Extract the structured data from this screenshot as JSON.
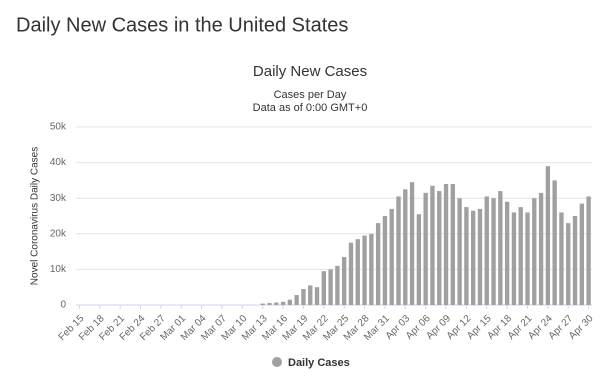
{
  "page_title": "Daily New Cases in the United States",
  "chart_data": {
    "type": "bar",
    "title": "Daily New Cases",
    "subtitle": [
      "Cases per Day",
      "Data as of 0:00 GMT+0"
    ],
    "y_label": "Novel Coronavirus Daily Cases",
    "categories": [
      "Feb 15",
      null,
      null,
      "Feb 18",
      null,
      null,
      "Feb 21",
      null,
      null,
      "Feb 24",
      null,
      null,
      "Feb 27",
      null,
      null,
      "Mar 01",
      null,
      null,
      "Mar 04",
      null,
      null,
      "Mar 07",
      null,
      null,
      "Mar 10",
      null,
      null,
      "Mar 13",
      null,
      null,
      "Mar 16",
      null,
      null,
      "Mar 19",
      null,
      null,
      "Mar 22",
      null,
      null,
      "Mar 25",
      null,
      null,
      "Mar 28",
      null,
      null,
      "Mar 31",
      null,
      null,
      "Apr 03",
      null,
      null,
      "Apr 06",
      null,
      null,
      "Apr 09",
      null,
      null,
      "Apr 12",
      null,
      null,
      "Apr 15",
      null,
      null,
      "Apr 18",
      null,
      null,
      "Apr 21",
      null,
      null,
      "Apr 24",
      null,
      null,
      "Apr 27",
      null,
      null,
      "Apr 30"
    ],
    "series": [
      {
        "name": "Daily Cases",
        "color": "#a0a0a0",
        "values": [
          0,
          0,
          0,
          0,
          0,
          0,
          0,
          0,
          0,
          0,
          0,
          0,
          0,
          0,
          0,
          0,
          0,
          0,
          0,
          0,
          0,
          0,
          0,
          0,
          0,
          0,
          0,
          400,
          550,
          700,
          900,
          1500,
          2800,
          4500,
          5500,
          5000,
          9500,
          10000,
          11000,
          13500,
          17500,
          18500,
          19500,
          20000,
          23000,
          25000,
          27000,
          30500,
          32500,
          34500,
          25500,
          31500,
          33500,
          32000,
          34000,
          34000,
          30000,
          27500,
          26500,
          27000,
          30500,
          30000,
          32000,
          29000,
          26000,
          27500,
          26000,
          30000,
          31500,
          39000,
          35000,
          26000,
          23000,
          25000,
          28500,
          30500
        ]
      }
    ],
    "ylim": [
      0,
      50000
    ],
    "yticks": [
      0,
      {
        "value": 10000,
        "label": "10k"
      },
      {
        "value": 20000,
        "label": "20k"
      },
      {
        "value": 30000,
        "label": "30k"
      },
      {
        "value": 40000,
        "label": "40k"
      },
      {
        "value": 50000,
        "label": "50k"
      }
    ],
    "grid": true,
    "legend": "bottom"
  }
}
